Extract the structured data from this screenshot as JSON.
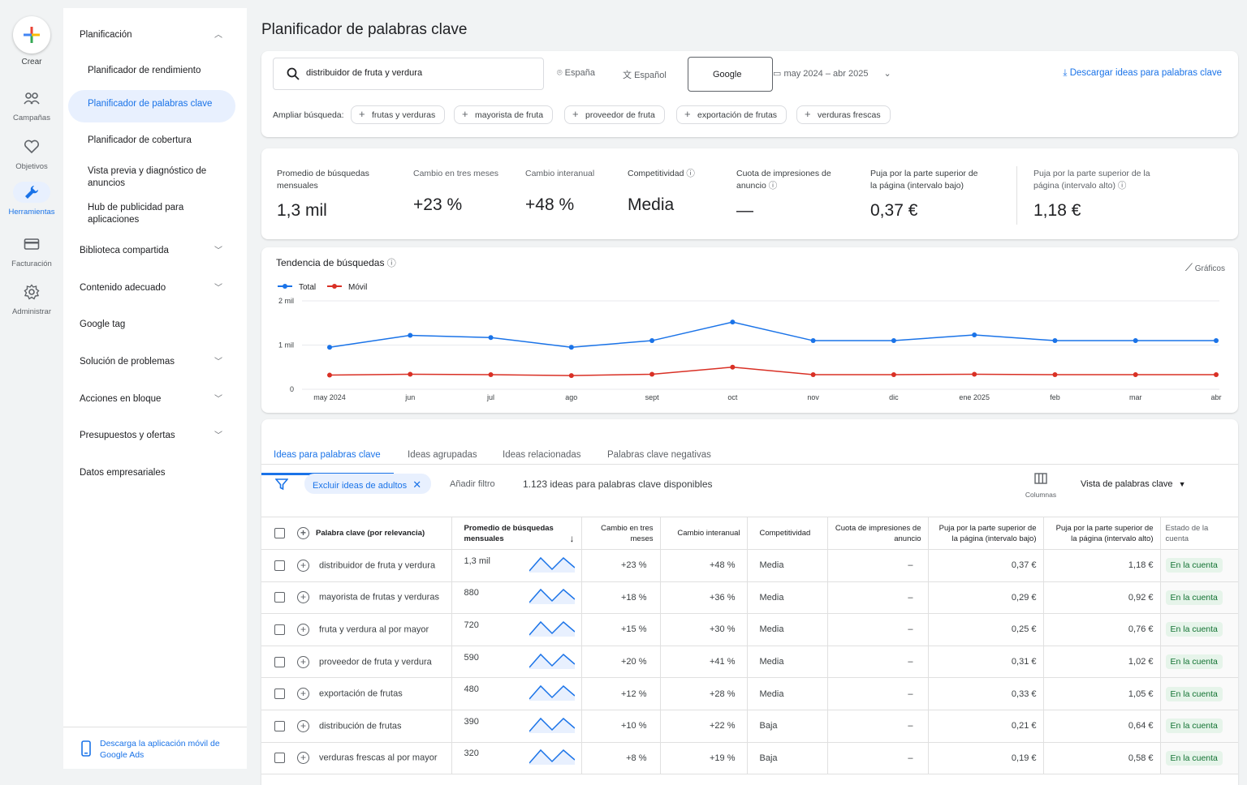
{
  "rail": {
    "create": "Crear",
    "items": [
      {
        "label": "Campañas",
        "icon": "campaigns-icon"
      },
      {
        "label": "Objetivos",
        "icon": "goals-icon"
      },
      {
        "label": "Herramientas",
        "icon": "tools-icon"
      },
      {
        "label": "Facturación",
        "icon": "billing-icon"
      },
      {
        "label": "Administrar",
        "icon": "admin-icon"
      }
    ]
  },
  "nav": {
    "section": "Planificación",
    "items": [
      "Planificador de rendimiento",
      "Planificador de palabras clave",
      "Planificador de cobertura",
      "Vista previa y diagnóstico de anuncios",
      "Hub de publicidad para aplicaciones"
    ],
    "groups": [
      "Biblioteca compartida",
      "Contenido adecuado",
      "Google tag",
      "Solución de problemas",
      "Acciones en bloque",
      "Presupuestos y ofertas",
      "Datos empresariales"
    ],
    "footer": "Descarga la aplicación móvil de Google Ads"
  },
  "page_title": "Planificador de palabras clave",
  "search": {
    "query": "distribuidor de fruta y verdura",
    "location": "España",
    "language": "Español",
    "network": "Google",
    "date_range": "may 2024 – abr 2025",
    "download": "Descargar ideas para palabras clave",
    "expand_label": "Ampliar búsqueda:",
    "chips": [
      "frutas y verduras",
      "mayorista de fruta",
      "proveedor de fruta",
      "exportación de frutas",
      "verduras frescas"
    ]
  },
  "stats": [
    {
      "label": "Promedio de búsquedas mensuales",
      "value": "1,3 mil"
    },
    {
      "label": "Cambio en tres meses",
      "value": "+23 %"
    },
    {
      "label": "Cambio interanual",
      "value": "+48 %"
    },
    {
      "label": "Competitividad",
      "value": "Media"
    },
    {
      "label": "Cuota de impresiones de anuncio",
      "value": "—"
    },
    {
      "label": "Puja por la parte superior de la página (intervalo bajo)",
      "value": "0,37 €"
    },
    {
      "label": "Puja por la parte superior de la página (intervalo alto)",
      "value": "1,18 €"
    }
  ],
  "trend": {
    "title": "Tendencia de búsquedas",
    "graphs_label": "Gráficos"
  },
  "chart_data": {
    "type": "line",
    "x": [
      "may 2024",
      "jun",
      "jul",
      "ago",
      "sept",
      "oct",
      "nov",
      "dic",
      "ene 2025",
      "feb",
      "mar",
      "abr"
    ],
    "yticks": [
      "0",
      "1 mil",
      "2 mil"
    ],
    "ylim": [
      0,
      2000
    ],
    "series": [
      {
        "name": "Total",
        "color": "#1a73e8",
        "values": [
          950,
          1220,
          1170,
          950,
          1100,
          1520,
          1100,
          1100,
          1230,
          1100,
          1100,
          1100
        ]
      },
      {
        "name": "Móvil",
        "color": "#d93025",
        "values": [
          320,
          340,
          330,
          310,
          340,
          500,
          330,
          330,
          340,
          330,
          330,
          330
        ]
      }
    ],
    "grid": true,
    "legend": "top-left"
  },
  "results": {
    "tabs": [
      "Ideas para palabras clave",
      "Ideas agrupadas",
      "Ideas relacionadas",
      "Palabras clave negativas"
    ],
    "filter_chip": "Excluir ideas de adultos",
    "add_filter": "Añadir filtro",
    "count": "1.123 ideas para palabras clave disponibles",
    "columns_label": "Columnas",
    "view": "Vista de palabras clave",
    "headers": {
      "keyword": "Palabra clave (por relevancia)",
      "avg": "Promedio de búsquedas mensuales",
      "three": "Cambio en tres meses",
      "yoy": "Cambio interanual",
      "comp": "Competitividad",
      "share": "Cuota de impresiones de anuncio",
      "low": "Puja por la parte superior de la página (intervalo bajo)",
      "high": "Puja por la parte superior de la página (intervalo alto)",
      "state": "Estado de la cuenta"
    },
    "rows": [
      {
        "kw": "distribuidor de fruta y verdura",
        "avg": "1,3 mil",
        "three": "+23 %",
        "yoy": "+48 %",
        "comp": "Media",
        "share": "–",
        "low": "0,37 €",
        "high": "1,18 €",
        "state": "En la cuenta"
      },
      {
        "kw": "mayorista de frutas y verduras",
        "avg": "880",
        "three": "+18 %",
        "yoy": "+36 %",
        "comp": "Media",
        "share": "–",
        "low": "0,29 €",
        "high": "0,92 €",
        "state": "En la cuenta"
      },
      {
        "kw": "fruta y verdura al por mayor",
        "avg": "720",
        "three": "+15 %",
        "yoy": "+30 %",
        "comp": "Media",
        "share": "–",
        "low": "0,25 €",
        "high": "0,76 €",
        "state": "En la cuenta"
      },
      {
        "kw": "proveedor de fruta y verdura",
        "avg": "590",
        "three": "+20 %",
        "yoy": "+41 %",
        "comp": "Media",
        "share": "–",
        "low": "0,31 €",
        "high": "1,02 €",
        "state": "En la cuenta"
      },
      {
        "kw": "exportación de frutas",
        "avg": "480",
        "three": "+12 %",
        "yoy": "+28 %",
        "comp": "Media",
        "share": "–",
        "low": "0,33 €",
        "high": "1,05 €",
        "state": "En la cuenta"
      },
      {
        "kw": "distribución de frutas",
        "avg": "390",
        "three": "+10 %",
        "yoy": "+22 %",
        "comp": "Baja",
        "share": "–",
        "low": "0,21 €",
        "high": "0,64 €",
        "state": "En la cuenta"
      },
      {
        "kw": "verduras frescas al por mayor",
        "avg": "320",
        "three": "+8 %",
        "yoy": "+19 %",
        "comp": "Baja",
        "share": "–",
        "low": "0,19 €",
        "high": "0,58 €",
        "state": "En la cuenta"
      }
    ]
  }
}
